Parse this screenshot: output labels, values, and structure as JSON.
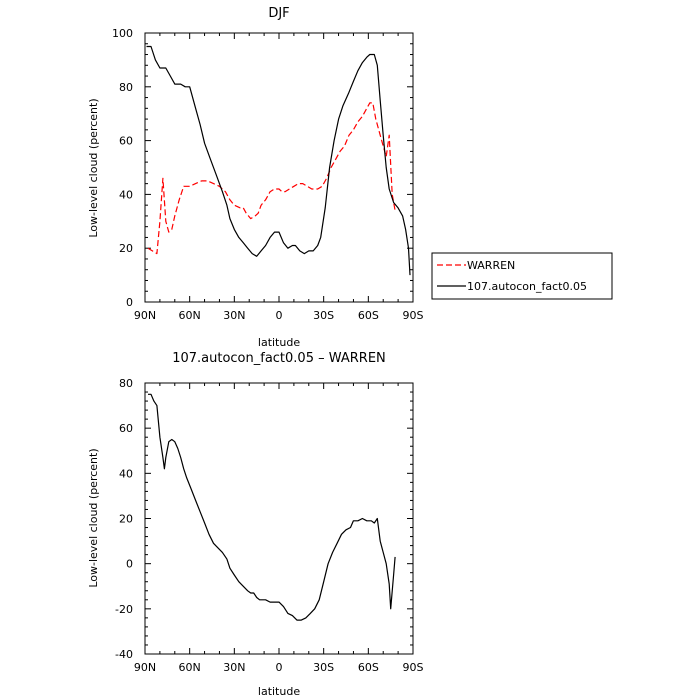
{
  "chart_data": [
    {
      "type": "line",
      "title": "DJF",
      "xlabel": "latitude",
      "ylabel": "Low-level cloud (percent)",
      "xlim": [
        90,
        -90
      ],
      "ylim": [
        0,
        100
      ],
      "xticks": [
        {
          "value": 90,
          "label": "90N"
        },
        {
          "value": 60,
          "label": "60N"
        },
        {
          "value": 30,
          "label": "30N"
        },
        {
          "value": 0,
          "label": "0"
        },
        {
          "value": -30,
          "label": "30S"
        },
        {
          "value": -60,
          "label": "60S"
        },
        {
          "value": -90,
          "label": "90S"
        }
      ],
      "yticks": [
        0,
        20,
        40,
        60,
        80,
        100
      ],
      "legend_position": "right",
      "series": [
        {
          "name": "WARREN",
          "color": "#ff0000",
          "dash": "dashed",
          "points": [
            [
              88,
              20
            ],
            [
              85,
              19
            ],
            [
              82,
              18
            ],
            [
              80,
              30
            ],
            [
              78,
              46
            ],
            [
              76,
              30
            ],
            [
              74,
              26
            ],
            [
              72,
              27
            ],
            [
              70,
              32
            ],
            [
              67,
              38
            ],
            [
              64,
              43
            ],
            [
              60,
              43
            ],
            [
              56,
              44
            ],
            [
              52,
              45
            ],
            [
              48,
              45
            ],
            [
              44,
              44
            ],
            [
              40,
              43
            ],
            [
              36,
              41
            ],
            [
              33,
              38
            ],
            [
              30,
              36
            ],
            [
              26,
              35
            ],
            [
              24,
              35
            ],
            [
              22,
              33
            ],
            [
              19,
              31
            ],
            [
              16,
              32
            ],
            [
              14,
              33
            ],
            [
              12,
              36
            ],
            [
              9,
              38
            ],
            [
              6,
              41
            ],
            [
              3,
              42
            ],
            [
              0,
              42
            ],
            [
              -2,
              41
            ],
            [
              -4,
              41
            ],
            [
              -7,
              42
            ],
            [
              -10,
              43
            ],
            [
              -13,
              44
            ],
            [
              -16,
              44
            ],
            [
              -19,
              43
            ],
            [
              -22,
              42
            ],
            [
              -26,
              42
            ],
            [
              -29,
              43
            ],
            [
              -32,
              46
            ],
            [
              -35,
              50
            ],
            [
              -38,
              53
            ],
            [
              -41,
              56
            ],
            [
              -44,
              58
            ],
            [
              -47,
              62
            ],
            [
              -50,
              64
            ],
            [
              -53,
              67
            ],
            [
              -56,
              69
            ],
            [
              -59,
              72
            ],
            [
              -61,
              74
            ],
            [
              -63,
              74
            ],
            [
              -65,
              68
            ],
            [
              -68,
              62
            ],
            [
              -70,
              58
            ],
            [
              -72,
              54
            ],
            [
              -74,
              62
            ],
            [
              -76,
              40
            ],
            [
              -78,
              34
            ]
          ]
        },
        {
          "name": "107.autocon_fact0.05",
          "color": "#000000",
          "dash": "solid",
          "points": [
            [
              89,
              95
            ],
            [
              86,
              95
            ],
            [
              83,
              90
            ],
            [
              80,
              87
            ],
            [
              76,
              87
            ],
            [
              73,
              84
            ],
            [
              70,
              81
            ],
            [
              66,
              81
            ],
            [
              63,
              80
            ],
            [
              60,
              80
            ],
            [
              56,
              72
            ],
            [
              53,
              66
            ],
            [
              50,
              59
            ],
            [
              46,
              53
            ],
            [
              42,
              47
            ],
            [
              38,
              41
            ],
            [
              35,
              36
            ],
            [
              33,
              31
            ],
            [
              30,
              27
            ],
            [
              27,
              24
            ],
            [
              24,
              22
            ],
            [
              21,
              20
            ],
            [
              18,
              18
            ],
            [
              15,
              17
            ],
            [
              12,
              19
            ],
            [
              9,
              21
            ],
            [
              6,
              24
            ],
            [
              3,
              26
            ],
            [
              0,
              26
            ],
            [
              -3,
              22
            ],
            [
              -6,
              20
            ],
            [
              -9,
              21
            ],
            [
              -11,
              21
            ],
            [
              -14,
              19
            ],
            [
              -17,
              18
            ],
            [
              -20,
              19
            ],
            [
              -23,
              19
            ],
            [
              -26,
              21
            ],
            [
              -28,
              24
            ],
            [
              -31,
              35
            ],
            [
              -34,
              50
            ],
            [
              -37,
              60
            ],
            [
              -40,
              68
            ],
            [
              -43,
              73
            ],
            [
              -47,
              78
            ],
            [
              -50,
              82
            ],
            [
              -53,
              86
            ],
            [
              -56,
              89
            ],
            [
              -59,
              91
            ],
            [
              -61,
              92
            ],
            [
              -64,
              92
            ],
            [
              -66,
              88
            ],
            [
              -68,
              75
            ],
            [
              -70,
              62
            ],
            [
              -72,
              50
            ],
            [
              -74,
              42
            ],
            [
              -77,
              37
            ],
            [
              -80,
              35
            ],
            [
              -83,
              32
            ],
            [
              -85,
              27
            ],
            [
              -87,
              20
            ],
            [
              -88,
              10
            ]
          ]
        }
      ]
    },
    {
      "type": "line",
      "title": "107.autocon_fact0.05 – WARREN",
      "xlabel": "latitude",
      "ylabel": "Low-level cloud (percent)",
      "xlim": [
        90,
        -90
      ],
      "ylim": [
        -40,
        80
      ],
      "xticks": [
        {
          "value": 90,
          "label": "90N"
        },
        {
          "value": 60,
          "label": "60N"
        },
        {
          "value": 30,
          "label": "30N"
        },
        {
          "value": 0,
          "label": "0"
        },
        {
          "value": -30,
          "label": "30S"
        },
        {
          "value": -60,
          "label": "60S"
        },
        {
          "value": -90,
          "label": "90S"
        }
      ],
      "yticks": [
        -40,
        -20,
        0,
        20,
        40,
        60,
        80
      ],
      "series": [
        {
          "color": "#000000",
          "dash": "solid",
          "points": [
            [
              88,
              75
            ],
            [
              86,
              75
            ],
            [
              84,
              72
            ],
            [
              82,
              70
            ],
            [
              80,
              56
            ],
            [
              78,
              47
            ],
            [
              77,
              42
            ],
            [
              76,
              47
            ],
            [
              74,
              54
            ],
            [
              72,
              55
            ],
            [
              70,
              54
            ],
            [
              68,
              51
            ],
            [
              66,
              47
            ],
            [
              64,
              42
            ],
            [
              62,
              38
            ],
            [
              59,
              33
            ],
            [
              56,
              28
            ],
            [
              53,
              23
            ],
            [
              50,
              18
            ],
            [
              47,
              13
            ],
            [
              44,
              9
            ],
            [
              41,
              7
            ],
            [
              38,
              5
            ],
            [
              35,
              2
            ],
            [
              33,
              -2
            ],
            [
              30,
              -5
            ],
            [
              27,
              -8
            ],
            [
              24,
              -10
            ],
            [
              21,
              -12
            ],
            [
              19,
              -13
            ],
            [
              17,
              -13
            ],
            [
              15,
              -15
            ],
            [
              13,
              -16
            ],
            [
              11,
              -16
            ],
            [
              9,
              -16
            ],
            [
              6,
              -17
            ],
            [
              3,
              -17
            ],
            [
              0,
              -17
            ],
            [
              -3,
              -19
            ],
            [
              -6,
              -22
            ],
            [
              -9,
              -23
            ],
            [
              -12,
              -25
            ],
            [
              -15,
              -25
            ],
            [
              -18,
              -24
            ],
            [
              -21,
              -22
            ],
            [
              -24,
              -20
            ],
            [
              -27,
              -16
            ],
            [
              -30,
              -8
            ],
            [
              -33,
              0
            ],
            [
              -36,
              5
            ],
            [
              -39,
              9
            ],
            [
              -42,
              13
            ],
            [
              -45,
              15
            ],
            [
              -48,
              16
            ],
            [
              -50,
              19
            ],
            [
              -53,
              19
            ],
            [
              -56,
              20
            ],
            [
              -59,
              19
            ],
            [
              -62,
              19
            ],
            [
              -64,
              18
            ],
            [
              -66,
              20
            ],
            [
              -68,
              10
            ],
            [
              -70,
              5
            ],
            [
              -72,
              0
            ],
            [
              -74,
              -9
            ],
            [
              -75,
              -20
            ],
            [
              -77,
              -5
            ],
            [
              -78,
              3
            ]
          ]
        }
      ]
    }
  ]
}
